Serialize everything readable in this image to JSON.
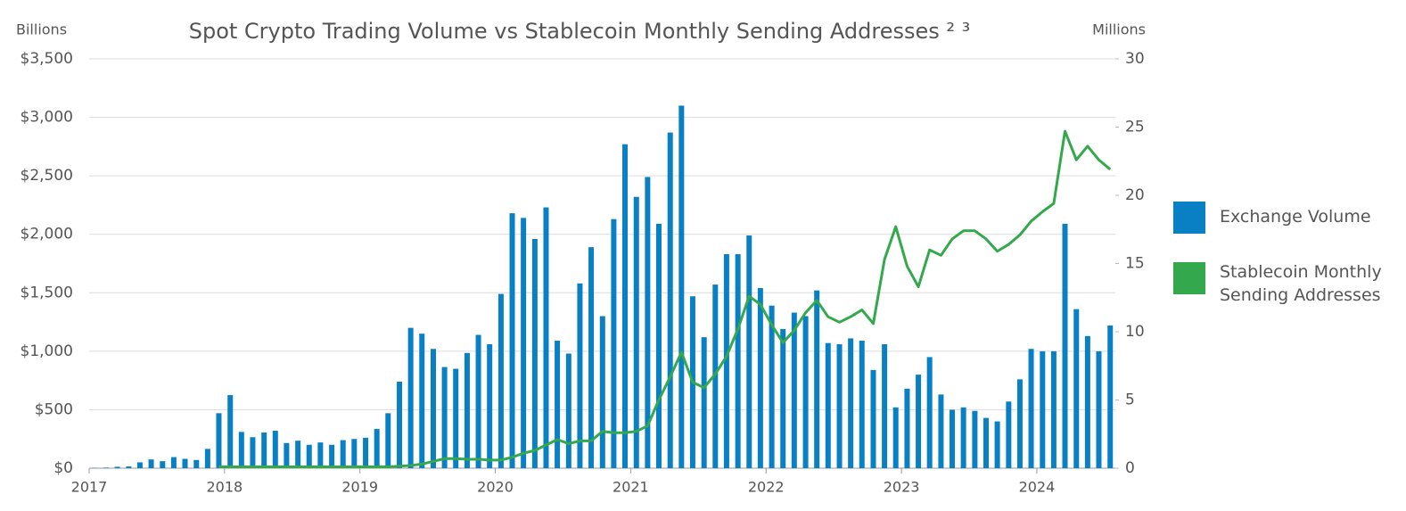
{
  "chart_data": {
    "type": "bar",
    "title": "Spot Crypto Trading Volume vs Stablecoin Monthly Sending Addresses ² ³",
    "ylabel": "Billions",
    "y2label": "Millions",
    "legend": "right",
    "grid": true,
    "xlim": [
      2017,
      2024.58
    ],
    "xticks": [
      2017,
      2018,
      2019,
      2020,
      2021,
      2022,
      2023,
      2024
    ],
    "ylim": [
      0,
      3500
    ],
    "yticks": [
      {
        "value": 0,
        "label": "$0"
      },
      {
        "value": 500,
        "label": "$500"
      },
      {
        "value": 1000,
        "label": "$1,000"
      },
      {
        "value": 1500,
        "label": "$1,500"
      },
      {
        "value": 2000,
        "label": "$2,000"
      },
      {
        "value": 2500,
        "label": "$2,500"
      },
      {
        "value": 3000,
        "label": "$3,000"
      },
      {
        "value": 3500,
        "label": "$3,500"
      }
    ],
    "y2lim": [
      0,
      30
    ],
    "y2ticks": [
      0,
      5,
      10,
      15,
      20,
      25,
      30
    ],
    "x": [
      2017.042,
      2017.125,
      2017.208,
      2017.292,
      2017.375,
      2017.458,
      2017.542,
      2017.625,
      2017.708,
      2017.792,
      2017.875,
      2017.958,
      2018.042,
      2018.125,
      2018.208,
      2018.292,
      2018.375,
      2018.458,
      2018.542,
      2018.625,
      2018.708,
      2018.792,
      2018.875,
      2018.958,
      2019.042,
      2019.125,
      2019.208,
      2019.292,
      2019.375,
      2019.458,
      2019.542,
      2019.625,
      2019.708,
      2019.792,
      2019.875,
      2019.958,
      2020.042,
      2020.125,
      2020.208,
      2020.292,
      2020.375,
      2020.458,
      2020.542,
      2020.625,
      2020.708,
      2020.792,
      2020.875,
      2020.958,
      2021.042,
      2021.125,
      2021.208,
      2021.292,
      2021.375,
      2021.458,
      2021.542,
      2021.625,
      2021.708,
      2021.792,
      2021.875,
      2021.958,
      2022.042,
      2022.125,
      2022.208,
      2022.292,
      2022.375,
      2022.458,
      2022.542,
      2022.625,
      2022.708,
      2022.792,
      2022.875,
      2022.958,
      2023.042,
      2023.125,
      2023.208,
      2023.292,
      2023.375,
      2023.458,
      2023.542,
      2023.625,
      2023.708,
      2023.792,
      2023.875,
      2023.958,
      2024.042,
      2024.125,
      2024.208,
      2024.292,
      2024.375,
      2024.458,
      2024.542
    ],
    "series": [
      {
        "name": "Exchange Volume",
        "type": "bar",
        "color": "#0a80c4",
        "values": [
          3,
          5,
          12,
          15,
          50,
          75,
          60,
          95,
          80,
          70,
          165,
          470,
          625,
          310,
          265,
          305,
          320,
          215,
          235,
          200,
          220,
          200,
          240,
          250,
          260,
          335,
          470,
          740,
          1200,
          1150,
          1020,
          865,
          850,
          985,
          1140,
          1060,
          1490,
          2180,
          2140,
          1960,
          2230,
          1090,
          980,
          1580,
          1890,
          1300,
          2130,
          2770,
          2320,
          2490,
          2090,
          2870,
          3100,
          1470,
          1120,
          1570,
          1830,
          1830,
          1990,
          1540,
          1390,
          1190,
          1330,
          1300,
          1520,
          1070,
          1060,
          1110,
          1090,
          840,
          1060,
          520,
          680,
          800,
          950,
          630,
          500,
          520,
          490,
          430,
          400,
          570,
          760,
          1020,
          1000,
          1000,
          2090,
          1360,
          1130,
          1000,
          1220
        ]
      },
      {
        "name": "Stablecoin Monthly Sending Addresses",
        "type": "line",
        "axis": "y2",
        "color": "#34a84c",
        "values": [
          null,
          null,
          null,
          null,
          null,
          null,
          null,
          null,
          null,
          null,
          null,
          0.1,
          0.1,
          0.1,
          0.1,
          0.1,
          0.1,
          0.1,
          0.1,
          0.1,
          0.1,
          0.1,
          0.1,
          0.1,
          0.1,
          0.1,
          0.1,
          0.15,
          0.2,
          0.3,
          0.5,
          0.7,
          0.7,
          0.65,
          0.65,
          0.6,
          0.6,
          0.8,
          1.1,
          1.3,
          1.7,
          2.1,
          1.8,
          2.0,
          2.0,
          2.7,
          2.6,
          2.6,
          2.7,
          3.1,
          5.0,
          6.7,
          8.5,
          6.3,
          5.9,
          6.9,
          8.2,
          10.2,
          12.6,
          12.0,
          10.5,
          9.2,
          10.1,
          11.4,
          12.3,
          11.1,
          10.7,
          11.1,
          11.6,
          10.6,
          15.3,
          17.7,
          14.8,
          13.3,
          16.0,
          15.6,
          16.8,
          17.4,
          17.4,
          16.8,
          15.9,
          16.4,
          17.1,
          18.1,
          18.8,
          19.4,
          24.7,
          22.6,
          23.6,
          22.6,
          21.9
        ]
      }
    ]
  }
}
